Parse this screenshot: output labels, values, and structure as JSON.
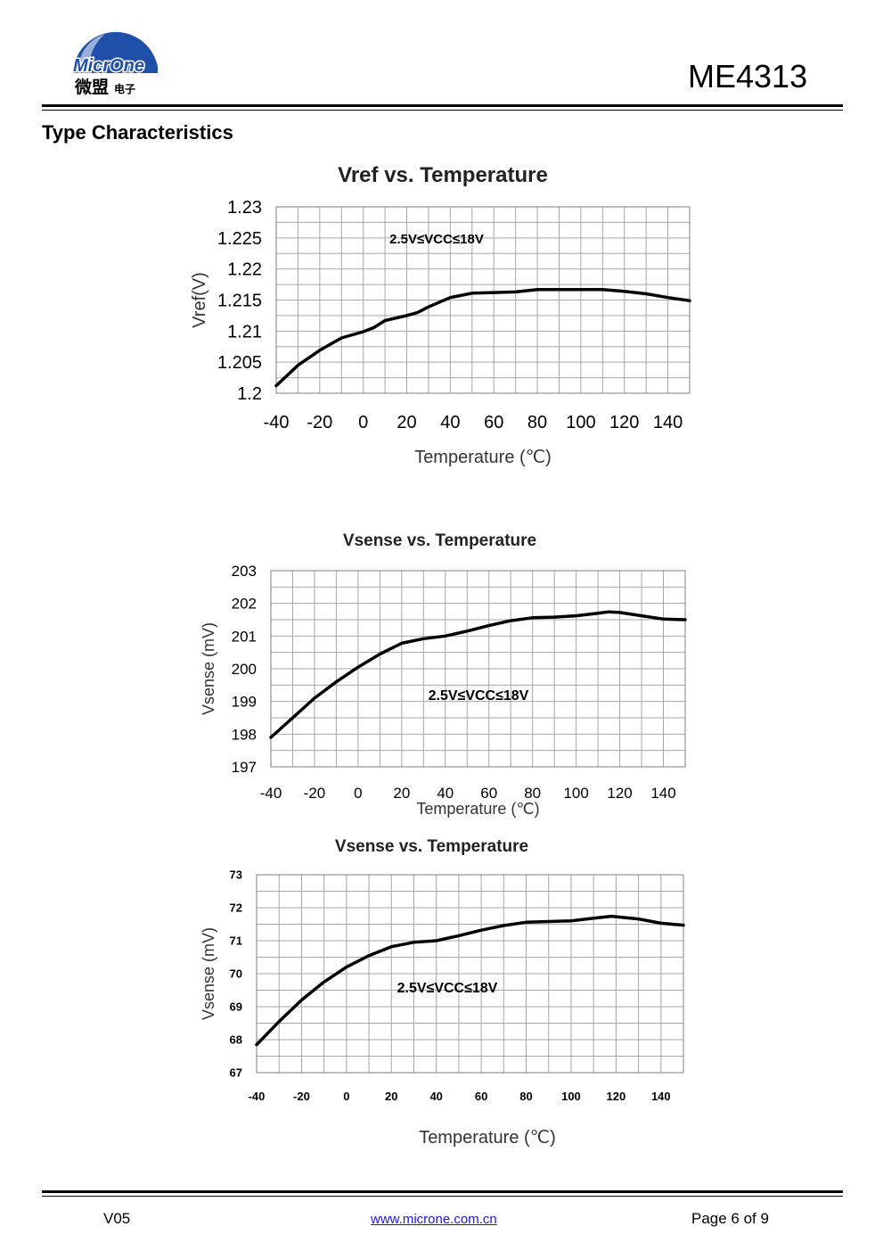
{
  "header": {
    "logo_text": "MicrOne",
    "logo_cn": "微盟",
    "logo_cn_small": "电子",
    "part_number": "ME4313"
  },
  "section_title": "Type Characteristics",
  "colors": {
    "logo_blue": "#1f4fa8",
    "grid": "#a6a6a6",
    "curve": "#000000",
    "link": "#1a1adc"
  },
  "chart_data": [
    {
      "type": "line",
      "title": "Vref vs. Temperature",
      "xlabel": "Temperature (℃)",
      "ylabel": "Vref(V)",
      "xlim": [
        -40,
        150
      ],
      "ylim": [
        1.2,
        1.23
      ],
      "xticks": [
        "-40",
        "-20",
        "0",
        "20",
        "40",
        "60",
        "80",
        "100",
        "120",
        "140"
      ],
      "yticks": [
        "1.23",
        "1.225",
        "1.22",
        "1.215",
        "1.21",
        "1.205",
        "1.2"
      ],
      "annotation": "2.5V≤VCC≤18V",
      "grid": true,
      "series": [
        {
          "x": [
            -40,
            -30,
            -20,
            -10,
            0,
            5,
            10,
            20,
            25,
            30,
            40,
            50,
            60,
            70,
            80,
            90,
            100,
            110,
            120,
            130,
            140,
            150
          ],
          "y": [
            1.2012,
            1.2045,
            1.2069,
            1.2089,
            1.2099,
            1.2106,
            1.2117,
            1.2125,
            1.213,
            1.2139,
            1.2154,
            1.2161,
            1.2162,
            1.2163,
            1.2167,
            1.2167,
            1.2167,
            1.2167,
            1.2164,
            1.216,
            1.2154,
            1.2149
          ]
        }
      ]
    },
    {
      "type": "line",
      "title": "Vsense vs. Temperature",
      "xlabel": "Temperature (℃)",
      "ylabel": "Vsense (mV)",
      "xlim": [
        -40,
        150
      ],
      "ylim": [
        197,
        203
      ],
      "xticks": [
        "-40",
        "-20",
        "0",
        "20",
        "40",
        "60",
        "80",
        "100",
        "120",
        "140"
      ],
      "yticks": [
        "203",
        "202",
        "201",
        "200",
        "199",
        "198",
        "197"
      ],
      "annotation": "2.5V≤VCC≤18V",
      "grid": true,
      "series": [
        {
          "x": [
            -40,
            -30,
            -20,
            -10,
            0,
            10,
            20,
            30,
            40,
            50,
            60,
            70,
            80,
            90,
            100,
            110,
            115,
            120,
            130,
            140,
            150
          ],
          "y": [
            197.9,
            198.5,
            199.1,
            199.6,
            200.05,
            200.45,
            200.78,
            200.92,
            201.0,
            201.15,
            201.32,
            201.47,
            201.56,
            201.58,
            201.62,
            201.7,
            201.74,
            201.72,
            201.62,
            201.52,
            201.5
          ]
        }
      ]
    },
    {
      "type": "line",
      "title": "Vsense vs. Temperature",
      "xlabel": "Temperature (℃)",
      "ylabel": "Vsense (mV)",
      "xlim": [
        -40,
        150
      ],
      "ylim": [
        67,
        73
      ],
      "xticks": [
        "-40",
        "-20",
        "0",
        "20",
        "40",
        "60",
        "80",
        "100",
        "120",
        "140"
      ],
      "yticks": [
        "73",
        "72",
        "71",
        "70",
        "69",
        "68",
        "67"
      ],
      "annotation": "2.5V≤VCC≤18V",
      "grid": true,
      "series": [
        {
          "x": [
            -40,
            -30,
            -20,
            -10,
            0,
            10,
            20,
            30,
            40,
            50,
            60,
            70,
            80,
            90,
            100,
            110,
            118,
            130,
            140,
            150
          ],
          "y": [
            67.85,
            68.55,
            69.2,
            69.75,
            70.2,
            70.55,
            70.82,
            70.95,
            71.0,
            71.15,
            71.32,
            71.46,
            71.56,
            71.58,
            71.6,
            71.68,
            71.74,
            71.66,
            71.53,
            71.47
          ]
        }
      ]
    }
  ],
  "footer": {
    "version": "V05",
    "url": "www.microne.com.cn",
    "page": "Page 6 of 9"
  }
}
